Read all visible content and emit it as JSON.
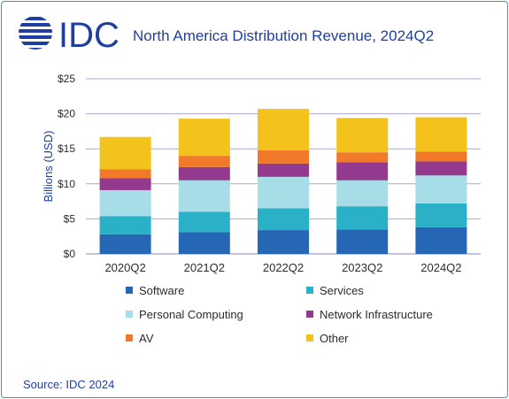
{
  "header": {
    "logo_text": "IDC",
    "title": "North America Distribution Revenue, 2024Q2"
  },
  "footer": {
    "source": "Source: IDC 2024"
  },
  "colors": {
    "brand": "#1f3fa0",
    "grid": "#a9a9d0",
    "Software": "#2567b4",
    "Services": "#2ab1c8",
    "Personal Computing": "#a6dde6",
    "Network Infrastructure": "#943a8e",
    "AV": "#f07a2a",
    "Other": "#f3c21b"
  },
  "chart_data": {
    "type": "bar",
    "stacked": true,
    "title": "North America Distribution Revenue, 2024Q2",
    "xlabel": "",
    "ylabel": "Billions (USD)",
    "ylim": [
      0,
      25
    ],
    "yticks": [
      0,
      5,
      10,
      15,
      20,
      25
    ],
    "ytick_labels": [
      "$0",
      "$5",
      "$10",
      "$15",
      "$20",
      "$25"
    ],
    "grid": true,
    "legend_placement": "bottom",
    "categories": [
      "2020Q2",
      "2021Q2",
      "2022Q2",
      "2023Q2",
      "2024Q2"
    ],
    "series": [
      {
        "name": "Software",
        "values": [
          2.8,
          3.1,
          3.4,
          3.5,
          3.8
        ]
      },
      {
        "name": "Services",
        "values": [
          2.6,
          2.9,
          3.1,
          3.3,
          3.4
        ]
      },
      {
        "name": "Personal Computing",
        "values": [
          3.7,
          4.5,
          4.5,
          3.7,
          4.0
        ]
      },
      {
        "name": "Network Infrastructure",
        "values": [
          1.7,
          1.9,
          1.9,
          2.6,
          2.0
        ]
      },
      {
        "name": "AV",
        "values": [
          1.3,
          1.6,
          1.9,
          1.4,
          1.4
        ]
      },
      {
        "name": "Other",
        "values": [
          4.6,
          5.3,
          5.9,
          4.9,
          4.9
        ]
      }
    ]
  }
}
